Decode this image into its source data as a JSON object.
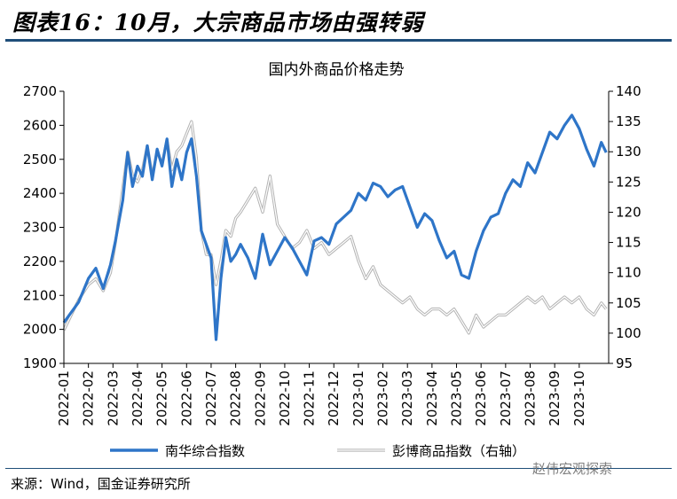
{
  "header": {
    "title": "图表16：10月，大宗商品市场由强转弱"
  },
  "footer": {
    "source": "来源：Wind，国金证券研究所",
    "watermark": "赵伟宏观探索"
  },
  "colors": {
    "nanhua": "#2e75c8",
    "pengbo": "#b3b3b3",
    "rule": "#1f4e79"
  },
  "chart_data": {
    "type": "line",
    "title": "国内外商品价格走势",
    "x_categories": [
      "2022-01",
      "2022-02",
      "2022-03",
      "2022-04",
      "2022-05",
      "2022-06",
      "2022-07",
      "2022-08",
      "2022-09",
      "2022-10",
      "2022-11",
      "2022-12",
      "2023-01",
      "2023-02",
      "2023-03",
      "2023-04",
      "2023-05",
      "2023-06",
      "2023-07",
      "2023-08",
      "2023-09",
      "2023-10"
    ],
    "x_range": [
      0,
      22.2
    ],
    "left_axis": {
      "ylim": [
        1900,
        2700
      ],
      "ticks": [
        1900,
        2000,
        2100,
        2200,
        2300,
        2400,
        2500,
        2600,
        2700
      ]
    },
    "right_axis": {
      "ylim": [
        95,
        140
      ],
      "ticks": [
        95,
        100,
        105,
        110,
        115,
        120,
        125,
        130,
        135,
        140
      ]
    },
    "series": [
      {
        "name": "南华综合指数",
        "axis": "left",
        "color": "#2e75c8",
        "x": [
          0,
          0.3,
          0.6,
          1.0,
          1.3,
          1.6,
          1.9,
          2.1,
          2.4,
          2.6,
          2.8,
          3.0,
          3.2,
          3.4,
          3.6,
          3.8,
          4.0,
          4.2,
          4.4,
          4.6,
          4.8,
          5.0,
          5.2,
          5.4,
          5.6,
          5.8,
          6.0,
          6.2,
          6.4,
          6.6,
          6.8,
          7.0,
          7.2,
          7.5,
          7.8,
          8.1,
          8.4,
          8.7,
          9.0,
          9.3,
          9.6,
          9.9,
          10.2,
          10.5,
          10.8,
          11.1,
          11.4,
          11.7,
          12.0,
          12.3,
          12.6,
          12.9,
          13.2,
          13.5,
          13.8,
          14.1,
          14.4,
          14.7,
          15.0,
          15.3,
          15.6,
          15.9,
          16.2,
          16.5,
          16.8,
          17.1,
          17.4,
          17.7,
          18.0,
          18.3,
          18.6,
          18.9,
          19.2,
          19.5,
          19.8,
          20.1,
          20.4,
          20.7,
          21.0,
          21.3,
          21.6,
          21.9,
          22.1
        ],
        "values": [
          2020,
          2050,
          2080,
          2150,
          2180,
          2120,
          2190,
          2260,
          2380,
          2520,
          2420,
          2480,
          2450,
          2540,
          2440,
          2530,
          2480,
          2560,
          2420,
          2500,
          2440,
          2520,
          2560,
          2450,
          2290,
          2250,
          2210,
          1970,
          2150,
          2270,
          2200,
          2220,
          2250,
          2210,
          2150,
          2280,
          2190,
          2230,
          2270,
          2240,
          2200,
          2160,
          2260,
          2270,
          2250,
          2310,
          2330,
          2350,
          2400,
          2380,
          2430,
          2420,
          2390,
          2410,
          2420,
          2360,
          2300,
          2340,
          2320,
          2260,
          2210,
          2230,
          2160,
          2150,
          2230,
          2290,
          2330,
          2340,
          2400,
          2440,
          2420,
          2490,
          2460,
          2520,
          2580,
          2560,
          2600,
          2630,
          2590,
          2530,
          2480,
          2550,
          2520
        ]
      },
      {
        "name": "彭博商品指数（右轴）",
        "axis": "right",
        "color": "#b3b3b3",
        "x": [
          0,
          0.3,
          0.6,
          1.0,
          1.3,
          1.6,
          1.9,
          2.1,
          2.4,
          2.6,
          2.8,
          3.0,
          3.2,
          3.4,
          3.6,
          3.8,
          4.0,
          4.2,
          4.4,
          4.6,
          4.8,
          5.0,
          5.2,
          5.4,
          5.6,
          5.8,
          6.0,
          6.2,
          6.4,
          6.6,
          6.8,
          7.0,
          7.2,
          7.5,
          7.8,
          8.1,
          8.4,
          8.7,
          9.0,
          9.3,
          9.6,
          9.9,
          10.2,
          10.5,
          10.8,
          11.1,
          11.4,
          11.7,
          12.0,
          12.3,
          12.6,
          12.9,
          13.2,
          13.5,
          13.8,
          14.1,
          14.4,
          14.7,
          15.0,
          15.3,
          15.6,
          15.9,
          16.2,
          16.5,
          16.8,
          17.1,
          17.4,
          17.7,
          18.0,
          18.3,
          18.6,
          18.9,
          19.2,
          19.5,
          19.8,
          20.1,
          20.4,
          20.7,
          21.0,
          21.3,
          21.6,
          21.9,
          22.1
        ],
        "values": [
          100.5,
          103,
          105.5,
          108,
          109,
          107,
          110,
          115,
          124,
          130,
          126,
          125,
          127,
          131,
          126,
          130,
          128,
          132,
          127,
          130,
          131,
          133,
          135,
          129,
          117,
          113,
          113,
          108,
          112,
          117,
          116,
          119,
          120,
          122,
          124,
          120,
          126,
          118,
          116,
          114,
          115,
          117,
          114,
          115,
          113,
          114,
          115,
          116,
          112,
          109,
          111,
          108,
          107,
          106,
          105,
          106,
          104,
          103,
          104,
          104,
          103,
          104,
          102,
          100,
          103,
          101,
          102,
          103,
          103,
          104,
          105,
          106,
          105,
          106,
          104,
          105,
          106,
          105,
          106,
          104,
          103,
          105,
          104
        ]
      }
    ],
    "legend": {
      "position": "bottom"
    }
  }
}
